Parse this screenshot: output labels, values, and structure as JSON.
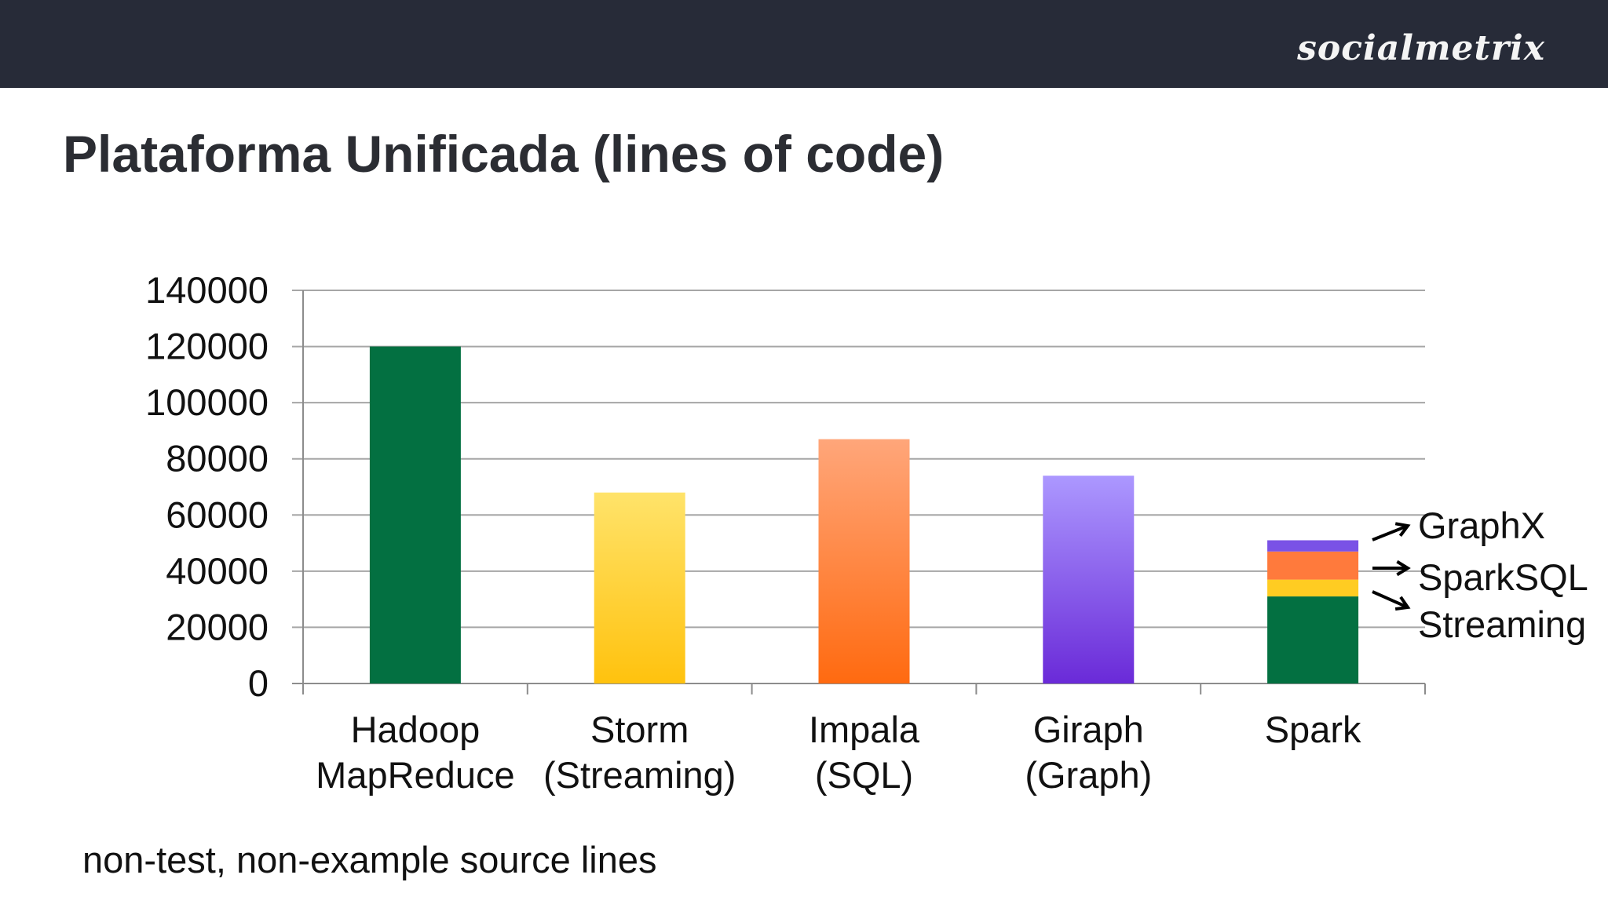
{
  "header": {
    "brand": "socialmetrix"
  },
  "slide": {
    "title": "Plataforma Unificada (lines of code)",
    "footnote": "non-test, non-example source lines"
  },
  "colors": {
    "topbar": "#272b38",
    "hadoop": "#037041",
    "storm": [
      "#ffe36a",
      "#ffc20e"
    ],
    "impala": [
      "#ffa67a",
      "#ff6a10"
    ],
    "giraph": [
      "#ac98ff",
      "#6a2ad8"
    ],
    "spark_streaming": "#ffcc22",
    "spark_sparksql": "#ff7a3c",
    "spark_graphx": "#7a52e6"
  },
  "chart_data": {
    "type": "bar",
    "title": "",
    "xlabel": "",
    "ylabel": "",
    "ylim": [
      0,
      140000
    ],
    "yticks": [
      0,
      20000,
      40000,
      60000,
      80000,
      100000,
      120000,
      140000
    ],
    "grid": true,
    "categories": [
      [
        "Hadoop",
        "MapReduce"
      ],
      [
        "Storm",
        "(Streaming)"
      ],
      [
        "Impala",
        "(SQL)"
      ],
      [
        "Giraph",
        "(Graph)"
      ],
      [
        "Spark"
      ]
    ],
    "bars": [
      {
        "category": "Hadoop MapReduce",
        "segments": [
          {
            "value": 120000,
            "color": "#037041"
          }
        ]
      },
      {
        "category": "Storm (Streaming)",
        "segments": [
          {
            "value": 68000,
            "gradient": [
              "#ffe36a",
              "#ffc20e"
            ]
          }
        ]
      },
      {
        "category": "Impala (SQL)",
        "segments": [
          {
            "value": 87000,
            "gradient": [
              "#ffa67a",
              "#ff6a10"
            ]
          }
        ]
      },
      {
        "category": "Giraph (Graph)",
        "segments": [
          {
            "value": 74000,
            "gradient": [
              "#ac98ff",
              "#6a2ad8"
            ]
          }
        ]
      },
      {
        "category": "Spark",
        "segments": [
          {
            "name": "Spark",
            "value": 31000,
            "color": "#037041"
          },
          {
            "name": "Streaming",
            "value": 6000,
            "color": "#ffcc22"
          },
          {
            "name": "SparkSQL",
            "value": 10000,
            "color": "#ff7a3c"
          },
          {
            "name": "GraphX",
            "value": 4000,
            "color": "#7a52e6"
          }
        ]
      }
    ],
    "annotations": [
      "GraphX",
      "SparkSQL",
      "Streaming"
    ]
  }
}
